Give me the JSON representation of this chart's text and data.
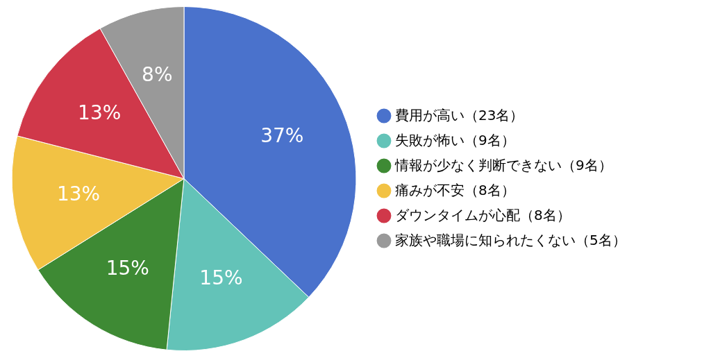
{
  "chart_data": {
    "type": "pie",
    "categories": [
      "費用が高い（23名）",
      "失敗が怖い（9名）",
      "情報が少なく判断できない（9名）",
      "痛みが不安（8名）",
      "ダウンタイムが心配（8名）",
      "家族や職場に知られたくない（5名）"
    ],
    "values": [
      37.1,
      14.5,
      14.5,
      12.9,
      12.9,
      8.1
    ],
    "value_labels": [
      "37%",
      "15%",
      "15%",
      "13%",
      "13%",
      "8%"
    ],
    "colors": [
      "#4a72cc",
      "#63c3b8",
      "#3e8a34",
      "#f2c244",
      "#d0384a",
      "#999999"
    ],
    "legend": "right"
  }
}
